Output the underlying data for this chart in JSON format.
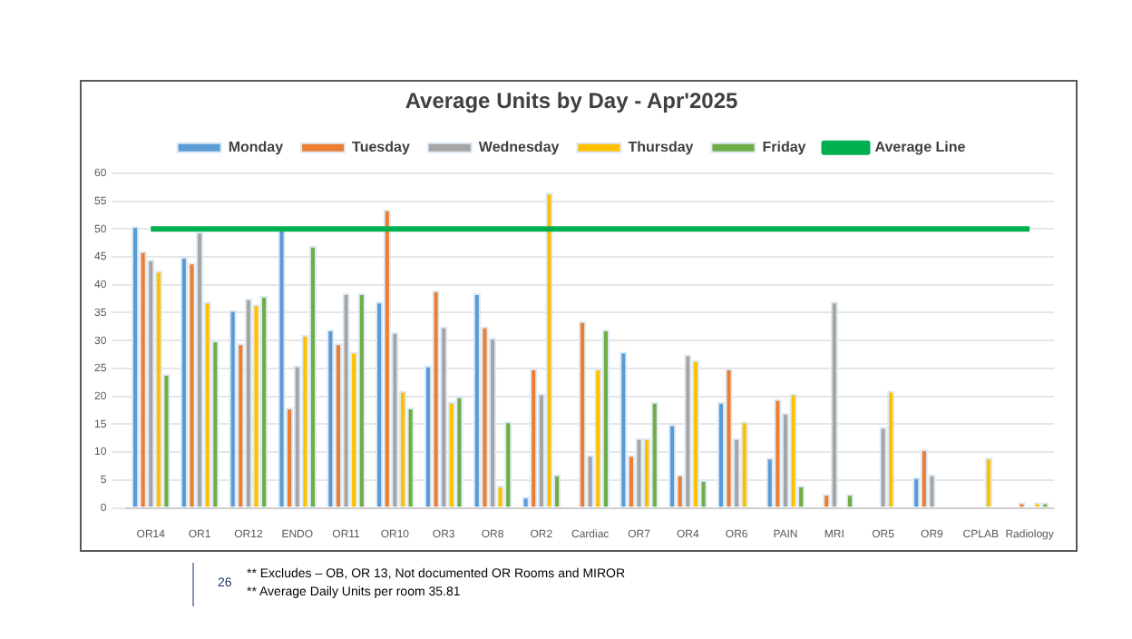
{
  "chart_data": {
    "type": "bar",
    "title": "Average Units by Day - Apr'2025",
    "categories": [
      "OR14",
      "OR1",
      "OR12",
      "ENDO",
      "OR11",
      "OR10",
      "OR3",
      "OR8",
      "OR2",
      "Cardiac",
      "OR7",
      "OR4",
      "OR6",
      "PAIN",
      "MRI",
      "OR5",
      "OR9",
      "CPLAB",
      "Radiology"
    ],
    "series": [
      {
        "name": "Monday",
        "color": "#5b9bd5",
        "values": [
          50.5,
          45,
          35.5,
          50,
          32,
          37,
          25.5,
          38.5,
          2,
          null,
          28,
          15,
          19,
          9,
          null,
          null,
          5.5,
          null,
          null
        ]
      },
      {
        "name": "Tuesday",
        "color": "#ed7d31",
        "values": [
          46,
          44,
          29.5,
          18,
          29.5,
          53.5,
          39,
          32.5,
          25,
          33.5,
          9.5,
          6,
          25,
          19.5,
          2.5,
          null,
          10.5,
          null,
          1
        ]
      },
      {
        "name": "Wednesday",
        "color": "#a5a5a5",
        "values": [
          44.5,
          49.5,
          37.5,
          25.5,
          38.5,
          31.5,
          32.5,
          30.5,
          20.5,
          9.5,
          12.5,
          27.5,
          12.5,
          17,
          37,
          14.5,
          6,
          null,
          null
        ]
      },
      {
        "name": "Thursday",
        "color": "#ffc000",
        "values": [
          42.5,
          37,
          36.5,
          31,
          28,
          21,
          19,
          4,
          56.5,
          25,
          12.5,
          26.5,
          15.5,
          20.5,
          null,
          21,
          null,
          9,
          1
        ]
      },
      {
        "name": "Friday",
        "color": "#70ad47",
        "values": [
          24,
          30,
          38,
          47,
          38.5,
          18,
          20,
          15.5,
          6,
          32,
          19,
          5,
          null,
          4,
          2.5,
          null,
          null,
          null,
          1
        ]
      },
      {
        "name": "Average Line",
        "type": "line",
        "color": "#00b050",
        "values": [
          50,
          50,
          50,
          50,
          50,
          50,
          50,
          50,
          50,
          50,
          50,
          50,
          50,
          50,
          50,
          50,
          50,
          50,
          50
        ]
      }
    ],
    "ylim": [
      0,
      60
    ],
    "yticks": [
      0,
      5,
      10,
      15,
      20,
      25,
      30,
      35,
      40,
      45,
      50,
      55,
      60
    ],
    "grid": "y",
    "legend": "top",
    "marker": "none",
    "annotations": [
      "26",
      "** Excludes – OB, OR 13, Not documented OR Rooms and MIROR",
      "** Average Daily Units per room 35.81"
    ]
  }
}
